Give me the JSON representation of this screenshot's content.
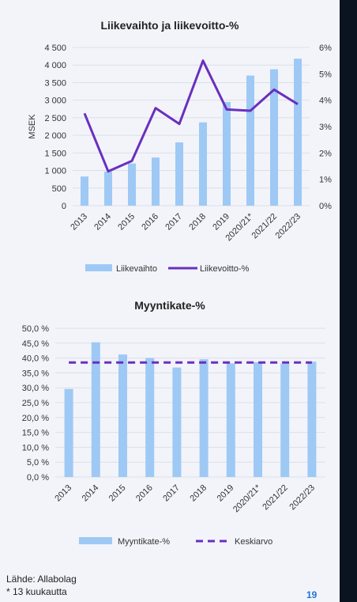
{
  "colors": {
    "bar": "#9ec9f5",
    "line": "#6a2fbf",
    "dashed": "#6a2fbf",
    "grid": "#dcdfe6",
    "text": "#333333"
  },
  "footer": {
    "source": "Lähde: Allabolag",
    "footnote": "* 13 kuukautta",
    "page_number": "19"
  },
  "chart_data": [
    {
      "type": "bar+line",
      "title": "Liikevaihto ja liikevoitto-%",
      "ylabel": "MSEK",
      "categories": [
        "2013",
        "2014",
        "2015",
        "2016",
        "2017",
        "2018",
        "2019",
        "2020/21*",
        "2021/22",
        "2022/23"
      ],
      "y_ticks": [
        "0",
        "500",
        "1 000",
        "1 500",
        "2 000",
        "2 500",
        "3 000",
        "3 500",
        "4 000",
        "4 500"
      ],
      "ylim": [
        0,
        4500
      ],
      "y2_ticks": [
        "0%",
        "1%",
        "2%",
        "3%",
        "4%",
        "5%",
        "6%"
      ],
      "y2lim": [
        0,
        6
      ],
      "legend_position": "bottom",
      "grid": true,
      "series": [
        {
          "name": "Liikevaihto",
          "type": "bar",
          "axis": "left",
          "values": [
            830,
            970,
            1200,
            1370,
            1800,
            2370,
            2950,
            3700,
            3880,
            4180
          ]
        },
        {
          "name": "Liikevoitto-%",
          "type": "line",
          "axis": "right",
          "values": [
            3.5,
            1.3,
            1.7,
            3.7,
            3.1,
            5.5,
            3.65,
            3.6,
            4.4,
            3.85
          ]
        }
      ]
    },
    {
      "type": "bar+line",
      "title": "Myyntikate-%",
      "ylabel": "",
      "categories": [
        "2013",
        "2014",
        "2015",
        "2016",
        "2017",
        "2018",
        "2019",
        "2020/21*",
        "2021/22",
        "2022/23"
      ],
      "y_ticks": [
        "0,0 %",
        "5,0 %",
        "10,0 %",
        "15,0 %",
        "20,0 %",
        "25,0 %",
        "30,0 %",
        "35,0 %",
        "40,0 %",
        "45,0 %",
        "50,0 %"
      ],
      "ylim": [
        0,
        50
      ],
      "legend_position": "bottom",
      "grid": true,
      "series": [
        {
          "name": "Myyntikate-%",
          "type": "bar",
          "values": [
            29.6,
            45.3,
            41.2,
            40.0,
            36.8,
            39.6,
            38.2,
            38.6,
            38.1,
            38.8
          ]
        },
        {
          "name": "Keskiarvo",
          "type": "dashed-line",
          "values": [
            38.5,
            38.5,
            38.5,
            38.5,
            38.5,
            38.5,
            38.5,
            38.5,
            38.5,
            38.5
          ]
        }
      ]
    }
  ]
}
